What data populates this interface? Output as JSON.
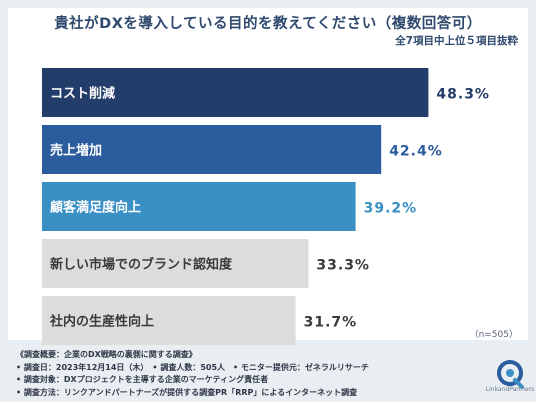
{
  "header": {
    "title": "貴社がDXを導入している目的を教えてください（複数回答可）",
    "subtitle": "全7項目中上位５項目抜粋"
  },
  "chart_data": {
    "type": "bar",
    "orientation": "horizontal",
    "title": "貴社がDXを導入している目的を教えてください（複数回答可）",
    "subtitle": "全7項目中上位５項目抜粋",
    "categories": [
      "コスト削減",
      "売上増加",
      "顧客満足度向上",
      "新しい市場でのブランド認知度",
      "社内の生産性向上"
    ],
    "values": [
      48.3,
      42.4,
      39.2,
      33.3,
      31.7
    ],
    "value_labels": [
      "48.3%",
      "42.4%",
      "39.2%",
      "33.3%",
      "31.7%"
    ],
    "bar_colors": [
      "#233d6b",
      "#2b5c9e",
      "#3a8fc4",
      "#dcdcdc",
      "#dcdcdc"
    ],
    "label_colors": [
      "#ffffff",
      "#ffffff",
      "#ffffff",
      "#3a3a3a",
      "#3a3a3a"
    ],
    "value_colors": [
      "#233d6b",
      "#2b5c9e",
      "#3a8fc4",
      "#3a3a3a",
      "#3a3a3a"
    ],
    "xlim": [
      0,
      55
    ],
    "grid": false,
    "legend": "none",
    "unit": "%"
  },
  "sample": "（n=505）",
  "footnotes": [
    "《調査概要：企業のDX戦略の裏側に関する調査》",
    "• 調査日：2023年12月14日（木）　• 調査人数：505人　• モニター提供元：ゼネラルリサーチ",
    "• 調査対象：DXプロジェクトを主導する企業のマーケティング責任者",
    "• 調査方法：リンクアンドパートナーズが提供する調査PR「RRP」によるインターネット調査"
  ],
  "logo": {
    "name": "LinkandPartners",
    "icon": "link-and-partners-logo-icon",
    "colors": [
      "#2b5c9e",
      "#3a8fc4"
    ]
  }
}
